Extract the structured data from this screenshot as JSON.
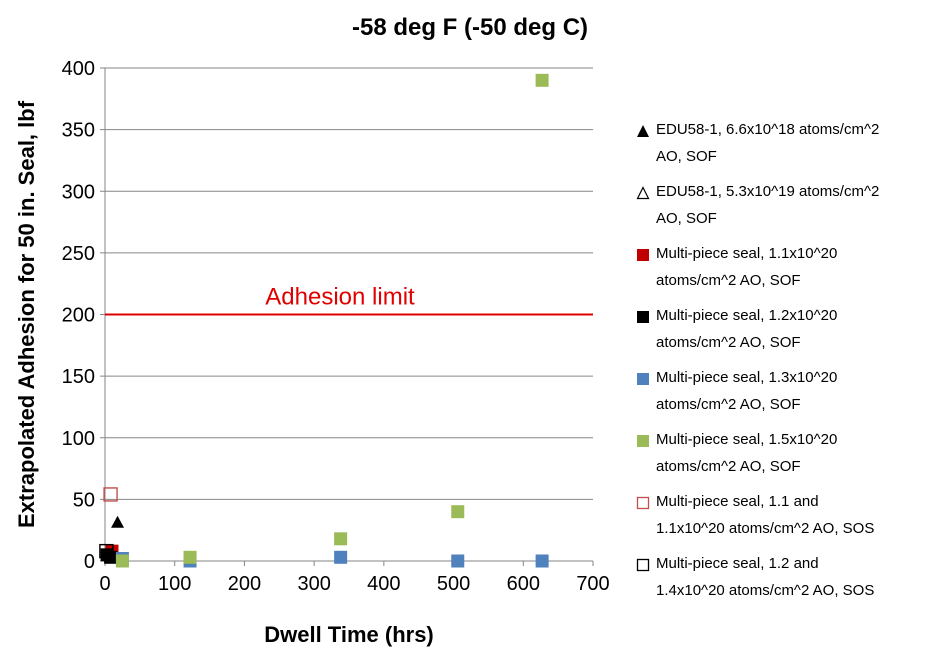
{
  "chart_data": {
    "type": "scatter",
    "title": "-58 deg F (-50 deg C)",
    "xlabel": "Dwell Time (hrs)",
    "ylabel": "Extrapolated Adhesion for 50 in. Seal, lbf",
    "xlim": [
      0,
      700
    ],
    "ylim": [
      0,
      400
    ],
    "x_ticks": [
      "0",
      "100",
      "200",
      "300",
      "400",
      "500",
      "600",
      "700"
    ],
    "y_ticks": [
      "0",
      "50",
      "100",
      "150",
      "200",
      "250",
      "300",
      "350",
      "400"
    ],
    "grid": "horizontal",
    "legend_position": "right",
    "reference_line": {
      "y": 200,
      "label": "Adhesion limit",
      "color": "#e00000"
    },
    "series": [
      {
        "name": "EDU58-1, 6.6x10^18 atoms/cm^2 AO, SOF",
        "marker": "triangle-filled",
        "color": "#000000",
        "points": [
          [
            18,
            31
          ]
        ]
      },
      {
        "name": "EDU58-1, 5.3x10^19 atoms/cm^2 AO, SOF",
        "marker": "triangle-open",
        "color": "#000000",
        "points": []
      },
      {
        "name": "Multi-piece seal, 1.1x10^20 atoms/cm^2 AO, SOF",
        "marker": "square-filled",
        "color": "#c00000",
        "points": [
          [
            10,
            8
          ]
        ]
      },
      {
        "name": "Multi-piece seal, 1.2x10^20 atoms/cm^2 AO, SOF",
        "marker": "square-filled",
        "color": "#000000",
        "points": [
          [
            3,
            5
          ],
          [
            8,
            3
          ]
        ]
      },
      {
        "name": "Multi-piece seal, 1.3x10^20 atoms/cm^2 AO, SOF",
        "marker": "square-filled",
        "color": "#4f81bd",
        "points": [
          [
            25,
            2
          ],
          [
            122,
            0
          ],
          [
            338,
            3
          ],
          [
            506,
            0
          ],
          [
            627,
            0
          ]
        ]
      },
      {
        "name": "Multi-piece seal, 1.5x10^20 atoms/cm^2 AO, SOF",
        "marker": "square-filled",
        "color": "#9bbb59",
        "points": [
          [
            25,
            0
          ],
          [
            122,
            3
          ],
          [
            338,
            18
          ],
          [
            506,
            40
          ],
          [
            627,
            390
          ]
        ]
      },
      {
        "name": "Multi-piece seal, 1.1 and 1.1x10^20 atoms/cm^2 AO, SOS",
        "marker": "square-open",
        "color": "#c0504d",
        "points": [
          [
            8,
            54
          ]
        ]
      },
      {
        "name": "Multi-piece seal, 1.2 and 1.4x10^20 atoms/cm^2 AO, SOS",
        "marker": "square-open",
        "color": "#000000",
        "points": [
          [
            2,
            8
          ]
        ]
      }
    ]
  },
  "legend": {
    "items": [
      {
        "line1": "EDU58-1, 6.6x10^18 atoms/cm^2",
        "line2": "AO, SOF"
      },
      {
        "line1": "EDU58-1, 5.3x10^19 atoms/cm^2",
        "line2": "AO, SOF"
      },
      {
        "line1": "Multi-piece seal, 1.1x10^20",
        "line2": "atoms/cm^2 AO, SOF"
      },
      {
        "line1": "Multi-piece seal, 1.2x10^20",
        "line2": "atoms/cm^2 AO, SOF"
      },
      {
        "line1": "Multi-piece seal, 1.3x10^20",
        "line2": "atoms/cm^2 AO, SOF"
      },
      {
        "line1": "Multi-piece seal, 1.5x10^20",
        "line2": "atoms/cm^2 AO, SOF"
      },
      {
        "line1": "Multi-piece seal, 1.1 and",
        "line2": "1.1x10^20 atoms/cm^2 AO, SOS"
      },
      {
        "line1": "Multi-piece seal, 1.2 and",
        "line2": "1.4x10^20 atoms/cm^2 AO, SOS"
      }
    ]
  }
}
